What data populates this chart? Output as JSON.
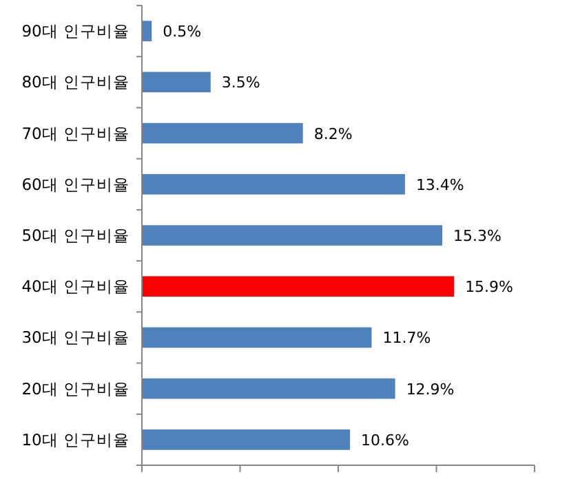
{
  "chart_data": {
    "type": "bar",
    "orientation": "horizontal",
    "categories": [
      "90대 인구비율",
      "80대 인구비율",
      "70대 인구비율",
      "60대 인구비율",
      "50대 인구비율",
      "40대 인구비율",
      "30대 인구비율",
      "20대 인구비율",
      "10대 인구비율"
    ],
    "values": [
      0.5,
      3.5,
      8.2,
      13.4,
      15.3,
      15.9,
      11.7,
      12.9,
      10.6
    ],
    "colors": [
      "#4f81bd",
      "#4f81bd",
      "#4f81bd",
      "#4f81bd",
      "#4f81bd",
      "#ff0000",
      "#4f81bd",
      "#4f81bd",
      "#4f81bd"
    ],
    "value_labels": [
      "0.5%",
      "3.5%",
      "8.2%",
      "13.4%",
      "15.3%",
      "15.9%",
      "11.7%",
      "12.9%",
      "10.6%"
    ],
    "xlim": [
      0,
      20
    ],
    "xticks": [
      {
        "value": 0,
        "label": null
      },
      {
        "value": 5,
        "label": null
      },
      {
        "value": 10,
        "label": null
      },
      {
        "value": 15,
        "label": null
      },
      {
        "value": 20,
        "label": null
      }
    ],
    "tick_labels": "y",
    "grid": false
  }
}
